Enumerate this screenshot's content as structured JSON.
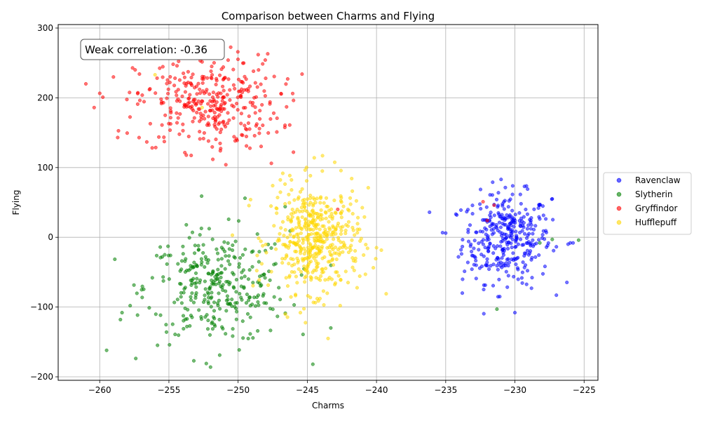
{
  "chart_data": {
    "type": "scatter",
    "title": "Comparison between Charms and Flying",
    "xlabel": "Charms",
    "ylabel": "Flying",
    "xlim": [
      -263,
      -224
    ],
    "ylim": [
      -205,
      305
    ],
    "xticks": [
      -260,
      -255,
      -250,
      -245,
      -240,
      -235,
      -230,
      -225
    ],
    "yticks": [
      -200,
      -100,
      0,
      100,
      200,
      300
    ],
    "grid": true,
    "legend_position": "right",
    "annotation": "Weak correlation: -0.36",
    "series": [
      {
        "name": "Ravenclaw",
        "color": "#0000ff",
        "center": [
          -230.6,
          -1
        ],
        "spread": [
          1.6,
          32
        ],
        "count": 340,
        "points": [
          [
            -235,
            6
          ],
          [
            -234.2,
            32
          ],
          [
            -233.8,
            -80
          ],
          [
            -226,
            -8
          ],
          [
            -225.8,
            -8
          ],
          [
            -232,
            22
          ],
          [
            -231,
            83
          ],
          [
            -230,
            -108
          ],
          [
            -228.8,
            -73
          ],
          [
            -227.3,
            55
          ],
          [
            -228.3,
            42
          ],
          [
            -233.4,
            -36
          ],
          [
            -232.8,
            -40
          ]
        ]
      },
      {
        "name": "Slytherin",
        "color": "#008000",
        "center": [
          -251.5,
          -72
        ],
        "spread": [
          2.6,
          40
        ],
        "count": 320,
        "points": [
          [
            -259.5,
            -162
          ],
          [
            -258.5,
            -118
          ],
          [
            -253.3,
            7
          ],
          [
            -249.5,
            56
          ],
          [
            -244.6,
            -182
          ],
          [
            -253.2,
            -177
          ],
          [
            -225.4,
            -4
          ],
          [
            -227.3,
            -3
          ],
          [
            -228.2,
            -8
          ],
          [
            -231.3,
            -103
          ],
          [
            -252.3,
            -181
          ],
          [
            -255.3,
            -25
          ],
          [
            -246.6,
            44
          ],
          [
            -243.3,
            -130
          ],
          [
            -257.8,
            -98
          ],
          [
            -256.2,
            -58
          ]
        ]
      },
      {
        "name": "Gryffindor",
        "color": "#ff0000",
        "center": [
          -252.2,
          193
        ],
        "spread": [
          2.6,
          34
        ],
        "count": 340,
        "points": [
          [
            -261,
            220
          ],
          [
            -260.4,
            186
          ],
          [
            -258.7,
            143
          ],
          [
            -258.6,
            260
          ],
          [
            -246.5,
            187
          ],
          [
            -246,
            122
          ],
          [
            -247.6,
            106
          ],
          [
            -247.2,
            151
          ],
          [
            -246.9,
            206
          ],
          [
            -242.8,
            40
          ],
          [
            -232,
            24
          ],
          [
            -231.5,
            46
          ],
          [
            -232.3,
            51
          ],
          [
            -252,
            280
          ]
        ]
      },
      {
        "name": "Hufflepuff",
        "color": "#ffd700",
        "center": [
          -244.4,
          -3
        ],
        "spread": [
          1.6,
          38
        ],
        "count": 480,
        "points": [
          [
            -239.3,
            -81
          ],
          [
            -244.5,
            114
          ],
          [
            -243.9,
            117
          ],
          [
            -243.5,
            -145
          ],
          [
            -240.6,
            71
          ],
          [
            -249.1,
            54
          ],
          [
            -256,
            233
          ],
          [
            -252.6,
            186
          ],
          [
            -240.8,
            -53
          ],
          [
            -247.5,
            74
          ],
          [
            -245.5,
            -108
          ]
        ]
      }
    ]
  }
}
